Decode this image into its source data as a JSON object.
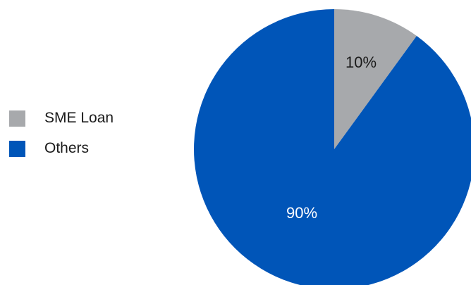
{
  "chart_data": {
    "type": "pie",
    "title": "",
    "slices": [
      {
        "label": "SME Loan",
        "value": 10,
        "display": "10%",
        "color": "#a7a9ac"
      },
      {
        "label": "Others",
        "value": 90,
        "display": "90%",
        "color": "#0055b8"
      }
    ],
    "start_angle_deg": 0,
    "direction": "clockwise",
    "legend_position": "left"
  }
}
